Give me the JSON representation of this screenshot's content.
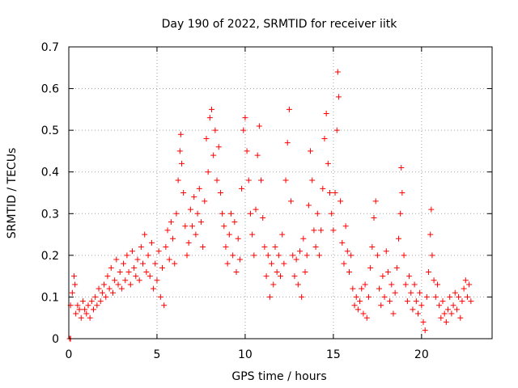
{
  "chart_data": {
    "type": "scatter",
    "title": "Day 190 of 2022, SRMTID for receiver iitk",
    "xlabel": "GPS time / hours",
    "ylabel": "SRMTID / TECUs",
    "xlim": [
      0,
      24
    ],
    "ylim": [
      0,
      0.7
    ],
    "xticks": [
      0,
      5,
      10,
      15,
      20
    ],
    "yticks": [
      0,
      0.1,
      0.2,
      0.3,
      0.4,
      0.5,
      0.6,
      0.7
    ],
    "xtick_labels": [
      "0",
      "5",
      "10",
      "15",
      "20"
    ],
    "ytick_labels": [
      "0",
      "0.1",
      "0.2",
      "0.3",
      "0.4",
      "0.5",
      "0.6",
      "0.7"
    ],
    "grid": true,
    "marker": "+",
    "color": "#ff0000",
    "series": [
      {
        "name": "SRMTID",
        "points": [
          [
            0.05,
            0.0
          ],
          [
            0.1,
            0.0
          ],
          [
            0.1,
            0.08
          ],
          [
            0.2,
            0.11
          ],
          [
            0.3,
            0.15
          ],
          [
            0.35,
            0.13
          ],
          [
            0.4,
            0.06
          ],
          [
            0.5,
            0.08
          ],
          [
            0.6,
            0.07
          ],
          [
            0.7,
            0.05
          ],
          [
            0.8,
            0.09
          ],
          [
            0.9,
            0.07
          ],
          [
            1.0,
            0.06
          ],
          [
            1.1,
            0.08
          ],
          [
            1.2,
            0.05
          ],
          [
            1.3,
            0.09
          ],
          [
            1.4,
            0.07
          ],
          [
            1.5,
            0.1
          ],
          [
            1.6,
            0.08
          ],
          [
            1.7,
            0.12
          ],
          [
            1.8,
            0.09
          ],
          [
            1.9,
            0.11
          ],
          [
            2.0,
            0.13
          ],
          [
            2.1,
            0.1
          ],
          [
            2.2,
            0.15
          ],
          [
            2.3,
            0.12
          ],
          [
            2.4,
            0.17
          ],
          [
            2.5,
            0.11
          ],
          [
            2.6,
            0.14
          ],
          [
            2.7,
            0.19
          ],
          [
            2.8,
            0.13
          ],
          [
            2.9,
            0.16
          ],
          [
            3.0,
            0.12
          ],
          [
            3.1,
            0.18
          ],
          [
            3.2,
            0.14
          ],
          [
            3.3,
            0.2
          ],
          [
            3.4,
            0.16
          ],
          [
            3.5,
            0.13
          ],
          [
            3.6,
            0.21
          ],
          [
            3.7,
            0.17
          ],
          [
            3.8,
            0.15
          ],
          [
            3.9,
            0.19
          ],
          [
            4.0,
            0.14
          ],
          [
            4.1,
            0.22
          ],
          [
            4.2,
            0.18
          ],
          [
            4.3,
            0.25
          ],
          [
            4.4,
            0.16
          ],
          [
            4.5,
            0.2
          ],
          [
            4.6,
            0.15
          ],
          [
            4.7,
            0.23
          ],
          [
            4.8,
            0.12
          ],
          [
            4.9,
            0.18
          ],
          [
            5.0,
            0.14
          ],
          [
            5.1,
            0.21
          ],
          [
            5.2,
            0.1
          ],
          [
            5.3,
            0.17
          ],
          [
            5.4,
            0.08
          ],
          [
            5.5,
            0.22
          ],
          [
            5.6,
            0.26
          ],
          [
            5.7,
            0.19
          ],
          [
            5.8,
            0.28
          ],
          [
            5.9,
            0.24
          ],
          [
            6.0,
            0.18
          ],
          [
            6.1,
            0.3
          ],
          [
            6.2,
            0.38
          ],
          [
            6.3,
            0.45
          ],
          [
            6.35,
            0.49
          ],
          [
            6.4,
            0.42
          ],
          [
            6.5,
            0.35
          ],
          [
            6.6,
            0.27
          ],
          [
            6.7,
            0.2
          ],
          [
            6.8,
            0.23
          ],
          [
            6.9,
            0.31
          ],
          [
            7.0,
            0.27
          ],
          [
            7.1,
            0.34
          ],
          [
            7.2,
            0.25
          ],
          [
            7.3,
            0.3
          ],
          [
            7.4,
            0.36
          ],
          [
            7.5,
            0.28
          ],
          [
            7.6,
            0.22
          ],
          [
            7.7,
            0.33
          ],
          [
            7.8,
            0.48
          ],
          [
            7.9,
            0.4
          ],
          [
            8.0,
            0.53
          ],
          [
            8.1,
            0.55
          ],
          [
            8.2,
            0.44
          ],
          [
            8.3,
            0.5
          ],
          [
            8.4,
            0.38
          ],
          [
            8.5,
            0.46
          ],
          [
            8.6,
            0.35
          ],
          [
            8.7,
            0.3
          ],
          [
            8.8,
            0.27
          ],
          [
            8.9,
            0.22
          ],
          [
            9.0,
            0.18
          ],
          [
            9.1,
            0.25
          ],
          [
            9.2,
            0.3
          ],
          [
            9.3,
            0.2
          ],
          [
            9.4,
            0.28
          ],
          [
            9.5,
            0.16
          ],
          [
            9.6,
            0.24
          ],
          [
            9.7,
            0.19
          ],
          [
            9.8,
            0.36
          ],
          [
            9.9,
            0.5
          ],
          [
            10.0,
            0.53
          ],
          [
            10.1,
            0.45
          ],
          [
            10.2,
            0.38
          ],
          [
            10.3,
            0.3
          ],
          [
            10.4,
            0.25
          ],
          [
            10.5,
            0.2
          ],
          [
            10.6,
            0.31
          ],
          [
            10.7,
            0.44
          ],
          [
            10.8,
            0.51
          ],
          [
            10.9,
            0.38
          ],
          [
            11.0,
            0.29
          ],
          [
            11.1,
            0.22
          ],
          [
            11.2,
            0.15
          ],
          [
            11.3,
            0.2
          ],
          [
            11.4,
            0.1
          ],
          [
            11.5,
            0.18
          ],
          [
            11.6,
            0.13
          ],
          [
            11.7,
            0.22
          ],
          [
            11.8,
            0.16
          ],
          [
            11.9,
            0.2
          ],
          [
            12.0,
            0.15
          ],
          [
            12.1,
            0.25
          ],
          [
            12.2,
            0.18
          ],
          [
            12.3,
            0.38
          ],
          [
            12.4,
            0.47
          ],
          [
            12.5,
            0.55
          ],
          [
            12.6,
            0.33
          ],
          [
            12.7,
            0.2
          ],
          [
            12.8,
            0.15
          ],
          [
            12.9,
            0.19
          ],
          [
            13.0,
            0.13
          ],
          [
            13.1,
            0.21
          ],
          [
            13.2,
            0.1
          ],
          [
            13.3,
            0.24
          ],
          [
            13.4,
            0.16
          ],
          [
            13.5,
            0.2
          ],
          [
            13.6,
            0.32
          ],
          [
            13.7,
            0.45
          ],
          [
            13.8,
            0.38
          ],
          [
            13.9,
            0.26
          ],
          [
            14.0,
            0.22
          ],
          [
            14.1,
            0.3
          ],
          [
            14.2,
            0.2
          ],
          [
            14.3,
            0.26
          ],
          [
            14.4,
            0.36
          ],
          [
            14.5,
            0.48
          ],
          [
            14.6,
            0.54
          ],
          [
            14.7,
            0.42
          ],
          [
            14.8,
            0.35
          ],
          [
            14.9,
            0.3
          ],
          [
            15.0,
            0.26
          ],
          [
            15.1,
            0.35
          ],
          [
            15.2,
            0.5
          ],
          [
            15.25,
            0.64
          ],
          [
            15.3,
            0.58
          ],
          [
            15.4,
            0.33
          ],
          [
            15.5,
            0.23
          ],
          [
            15.6,
            0.18
          ],
          [
            15.7,
            0.27
          ],
          [
            15.8,
            0.21
          ],
          [
            15.9,
            0.16
          ],
          [
            16.0,
            0.2
          ],
          [
            16.1,
            0.12
          ],
          [
            16.2,
            0.08
          ],
          [
            16.3,
            0.1
          ],
          [
            16.4,
            0.07
          ],
          [
            16.5,
            0.09
          ],
          [
            16.6,
            0.12
          ],
          [
            16.7,
            0.06
          ],
          [
            16.8,
            0.13
          ],
          [
            16.9,
            0.05
          ],
          [
            17.0,
            0.1
          ],
          [
            17.1,
            0.17
          ],
          [
            17.2,
            0.22
          ],
          [
            17.3,
            0.29
          ],
          [
            17.4,
            0.33
          ],
          [
            17.5,
            0.2
          ],
          [
            17.6,
            0.12
          ],
          [
            17.7,
            0.08
          ],
          [
            17.8,
            0.15
          ],
          [
            17.9,
            0.1
          ],
          [
            18.0,
            0.21
          ],
          [
            18.1,
            0.16
          ],
          [
            18.2,
            0.09
          ],
          [
            18.3,
            0.13
          ],
          [
            18.4,
            0.06
          ],
          [
            18.5,
            0.11
          ],
          [
            18.6,
            0.17
          ],
          [
            18.7,
            0.24
          ],
          [
            18.8,
            0.3
          ],
          [
            18.85,
            0.41
          ],
          [
            18.9,
            0.35
          ],
          [
            19.0,
            0.2
          ],
          [
            19.1,
            0.13
          ],
          [
            19.2,
            0.09
          ],
          [
            19.3,
            0.15
          ],
          [
            19.4,
            0.11
          ],
          [
            19.5,
            0.07
          ],
          [
            19.6,
            0.13
          ],
          [
            19.7,
            0.09
          ],
          [
            19.8,
            0.06
          ],
          [
            19.9,
            0.11
          ],
          [
            20.0,
            0.08
          ],
          [
            20.1,
            0.04
          ],
          [
            20.2,
            0.02
          ],
          [
            20.3,
            0.1
          ],
          [
            20.4,
            0.16
          ],
          [
            20.5,
            0.25
          ],
          [
            20.55,
            0.31
          ],
          [
            20.6,
            0.2
          ],
          [
            20.7,
            0.14
          ],
          [
            20.8,
            0.1
          ],
          [
            20.9,
            0.13
          ],
          [
            21.0,
            0.08
          ],
          [
            21.1,
            0.05
          ],
          [
            21.2,
            0.09
          ],
          [
            21.3,
            0.06
          ],
          [
            21.4,
            0.04
          ],
          [
            21.5,
            0.07
          ],
          [
            21.6,
            0.1
          ],
          [
            21.7,
            0.06
          ],
          [
            21.8,
            0.08
          ],
          [
            21.9,
            0.11
          ],
          [
            22.0,
            0.07
          ],
          [
            22.1,
            0.1
          ],
          [
            22.2,
            0.05
          ],
          [
            22.3,
            0.09
          ],
          [
            22.4,
            0.12
          ],
          [
            22.5,
            0.14
          ],
          [
            22.6,
            0.1
          ],
          [
            22.7,
            0.13
          ],
          [
            22.8,
            0.09
          ]
        ]
      }
    ]
  }
}
